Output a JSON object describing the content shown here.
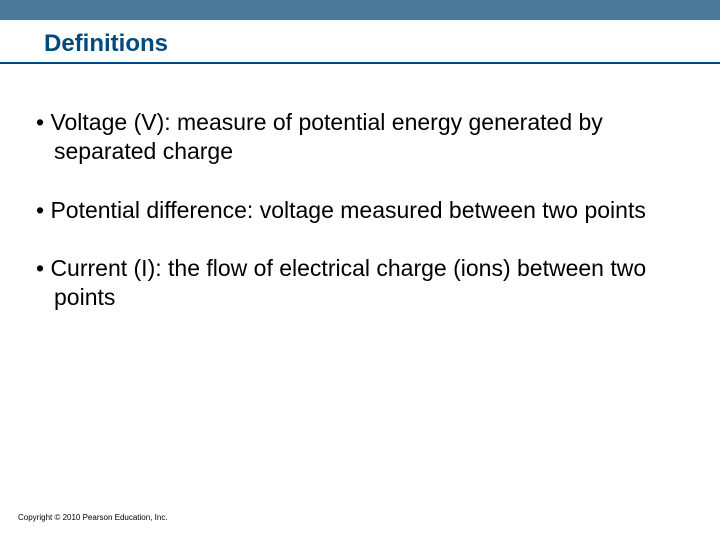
{
  "colors": {
    "top_bar": "#4b7a99",
    "title": "#004a80",
    "underline": "#004a80",
    "body_text": "#000000",
    "background": "#ffffff"
  },
  "title": "Definitions",
  "bullets": [
    "Voltage (V): measure of potential energy generated by separated charge",
    "Potential difference: voltage measured between two points",
    "Current (I): the flow of electrical charge (ions) between two points"
  ],
  "footer": "Copyright © 2010 Pearson Education, Inc.",
  "layout": {
    "slide_width": 720,
    "slide_height": 540,
    "title_fontsize": 24,
    "body_fontsize": 23,
    "footer_fontsize": 8,
    "bullet_char": "•"
  }
}
